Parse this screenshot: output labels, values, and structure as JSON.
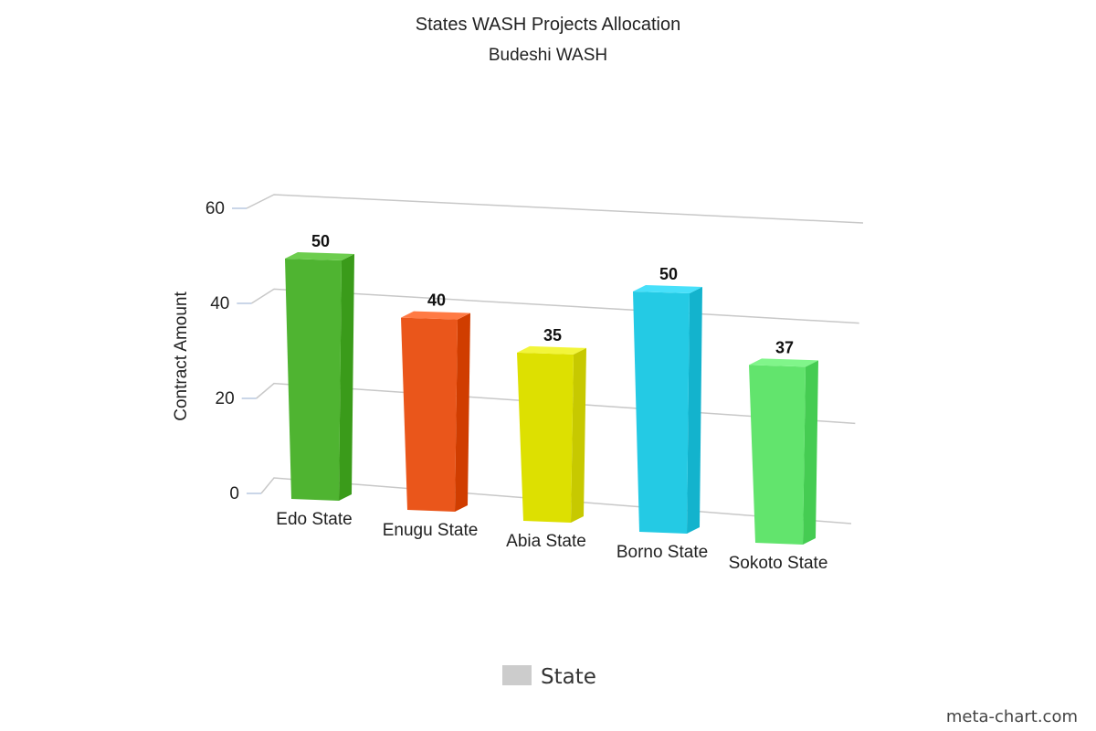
{
  "chart_data": {
    "type": "bar",
    "title": "States WASH Projects Allocation",
    "subtitle": "Budeshi WASH",
    "ylabel": "Contract Amount",
    "xlabel": "",
    "ylim": [
      0,
      60
    ],
    "yticks": [
      0,
      20,
      40,
      60
    ],
    "categories": [
      "Edo State",
      "Enugu State",
      "Abia State",
      "Borno State",
      "Sokoto State"
    ],
    "values": [
      50,
      40,
      35,
      50,
      37
    ],
    "value_labels": [
      "50",
      "40",
      "35",
      "50",
      "37"
    ],
    "bar_colors": [
      "#4fb431",
      "#ea561b",
      "#dde001",
      "#24cae4",
      "#62e46d"
    ],
    "bar_side_colors": [
      "#3a9b1a",
      "#d03d00",
      "#c7c900",
      "#13b3cd",
      "#45cc52"
    ],
    "bar_top_colors": [
      "#6dcd4e",
      "#ff7a44",
      "#f2f53a",
      "#48e0fa",
      "#80f58a"
    ],
    "series": [
      {
        "name": "State"
      }
    ],
    "legend": {
      "position": "bottom",
      "label": "State",
      "swatch_color": "#cccccc"
    },
    "grid": true,
    "style": "3d"
  },
  "credit": "meta-chart.com"
}
